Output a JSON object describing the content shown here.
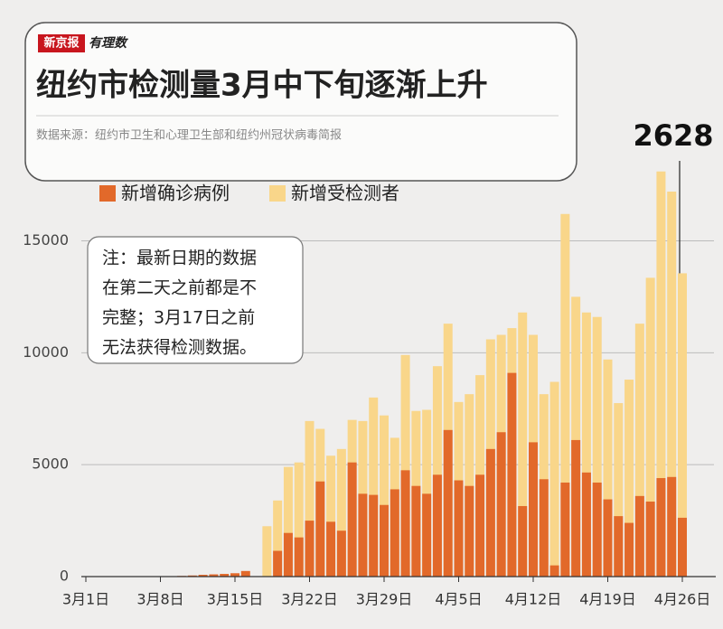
{
  "chart_data": {
    "type": "bar",
    "brand": [
      "新京报",
      "有理数"
    ],
    "title": "纽约市检测量3月中下旬逐渐上升",
    "source": "数据来源：纽约市卫生和心理卫生部和纽约州冠状病毒简报",
    "note": [
      "注：最新日期的数据",
      "在第二天之前都是不",
      "完整；3月17日之前",
      "无法获得检测数据。"
    ],
    "categories": [
      "3月1日",
      null,
      null,
      null,
      null,
      null,
      null,
      "3月8日",
      null,
      null,
      null,
      null,
      null,
      null,
      "3月15日",
      null,
      null,
      null,
      null,
      null,
      null,
      "3月22日",
      null,
      null,
      null,
      null,
      null,
      null,
      "3月29日",
      null,
      null,
      null,
      null,
      null,
      null,
      "4月5日",
      null,
      null,
      null,
      null,
      null,
      null,
      "4月12日",
      null,
      null,
      null,
      null,
      null,
      null,
      "4月19日",
      null,
      null,
      null,
      null,
      null,
      null,
      "4月26日"
    ],
    "series": [
      {
        "name": "新增确诊病例",
        "color": "#e2692a",
        "values": [
          0,
          0,
          0,
          0,
          0,
          0,
          0,
          10,
          20,
          30,
          50,
          80,
          100,
          120,
          150,
          250,
          0,
          0,
          1150,
          1950,
          1750,
          2500,
          4250,
          2450,
          2050,
          5100,
          3700,
          3650,
          3200,
          3900,
          4750,
          4050,
          3700,
          4550,
          6550,
          4300,
          4050,
          4550,
          5700,
          6450,
          9100,
          3150,
          6000,
          4350,
          500,
          4200,
          6100,
          4650,
          4200,
          3450,
          2700,
          2400,
          3600,
          3350,
          4400,
          4450,
          2628
        ]
      },
      {
        "name": "新增受检测者",
        "color": "#f9d68a",
        "values": [
          null,
          null,
          null,
          null,
          null,
          null,
          null,
          null,
          null,
          null,
          null,
          null,
          null,
          null,
          null,
          null,
          null,
          2250,
          3400,
          4900,
          5100,
          6950,
          6600,
          5400,
          5700,
          7000,
          6950,
          8000,
          7200,
          6200,
          9900,
          7400,
          7450,
          9400,
          11300,
          7800,
          8150,
          9000,
          10600,
          10800,
          11100,
          11800,
          10800,
          8150,
          8700,
          16200,
          12500,
          11800,
          11600,
          9700,
          7750,
          8800,
          11300,
          13350,
          18100,
          17200,
          13550
        ]
      }
    ],
    "ylim": [
      0,
      19300
    ],
    "yticks": [
      0,
      5000,
      10000,
      15000
    ],
    "grid": true
  }
}
